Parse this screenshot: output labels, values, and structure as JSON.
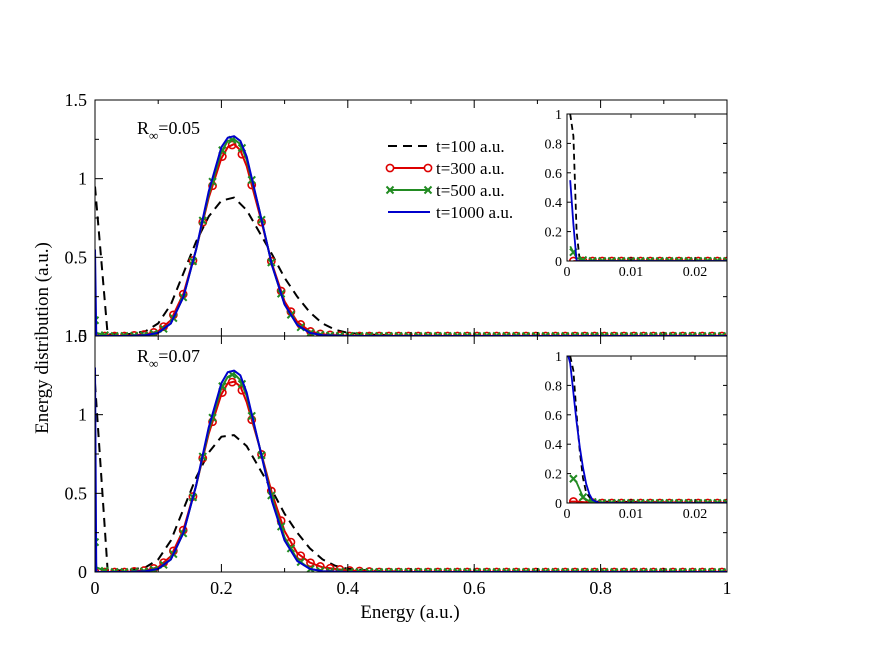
{
  "figure": {
    "xlabel": "Energy (a.u.)",
    "ylabel": "Energy distribution (a.u.)"
  },
  "legend": {
    "entries": [
      {
        "label": "t=100 a.u.",
        "color": "#000000",
        "dash": "dashed",
        "marker": "none"
      },
      {
        "label": "t=300 a.u.",
        "color": "#dd0000",
        "dash": "solid",
        "marker": "circle"
      },
      {
        "label": "t=500 a.u.",
        "color": "#228b22",
        "dash": "solid",
        "marker": "x"
      },
      {
        "label": "t=1000 a.u.",
        "color": "#0000cc",
        "dash": "solid",
        "marker": "none"
      }
    ]
  },
  "chart_data": [
    {
      "type": "line",
      "panel": "top-main",
      "annotation": "R∞=0.05",
      "xlim": [
        0,
        1
      ],
      "ylim": [
        0,
        1.5
      ],
      "xticks": [
        "0",
        "0.2",
        "0.4",
        "0.6",
        "0.8",
        "1"
      ],
      "yticks": [
        "0",
        "0.5",
        "1",
        "1.5"
      ],
      "series": [
        {
          "name": "t=100 a.u.",
          "x": [
            0.0,
            0.02,
            0.05,
            0.08,
            0.1,
            0.12,
            0.14,
            0.16,
            0.18,
            0.2,
            0.22,
            0.24,
            0.26,
            0.28,
            0.3,
            0.32,
            0.34,
            0.36,
            0.38,
            0.4,
            0.43,
            0.46,
            0.5,
            0.6,
            0.8,
            1.0
          ],
          "y": [
            0.95,
            0.01,
            0.01,
            0.03,
            0.08,
            0.2,
            0.4,
            0.6,
            0.76,
            0.86,
            0.88,
            0.8,
            0.66,
            0.52,
            0.37,
            0.25,
            0.15,
            0.08,
            0.04,
            0.02,
            0.01,
            0.005,
            0.0,
            0.0,
            0.0,
            0.0
          ]
        },
        {
          "name": "t=300 a.u.",
          "x": [
            0.0,
            0.02,
            0.05,
            0.08,
            0.1,
            0.12,
            0.14,
            0.16,
            0.18,
            0.2,
            0.21,
            0.22,
            0.23,
            0.24,
            0.26,
            0.28,
            0.3,
            0.32,
            0.34,
            0.36,
            0.38,
            0.4,
            0.45,
            0.5,
            0.6,
            0.8,
            1.0
          ],
          "y": [
            0.0,
            0.0,
            0.0,
            0.01,
            0.03,
            0.1,
            0.27,
            0.55,
            0.88,
            1.13,
            1.2,
            1.22,
            1.18,
            1.08,
            0.78,
            0.46,
            0.22,
            0.09,
            0.03,
            0.01,
            0.005,
            0.0,
            0.0,
            0.0,
            0.0,
            0.0,
            0.0
          ]
        },
        {
          "name": "t=500 a.u.",
          "x": [
            0.0,
            0.002,
            0.02,
            0.05,
            0.08,
            0.1,
            0.12,
            0.14,
            0.16,
            0.18,
            0.2,
            0.21,
            0.22,
            0.23,
            0.24,
            0.26,
            0.28,
            0.3,
            0.32,
            0.34,
            0.36,
            0.4,
            0.5,
            0.6,
            0.8,
            1.0
          ],
          "y": [
            0.1,
            0.02,
            0.0,
            0.0,
            0.005,
            0.02,
            0.08,
            0.25,
            0.55,
            0.9,
            1.17,
            1.24,
            1.25,
            1.22,
            1.12,
            0.8,
            0.45,
            0.2,
            0.07,
            0.02,
            0.005,
            0.0,
            0.0,
            0.0,
            0.0,
            0.0
          ]
        },
        {
          "name": "t=1000 a.u.",
          "x": [
            0.0,
            0.002,
            0.02,
            0.05,
            0.08,
            0.1,
            0.12,
            0.14,
            0.16,
            0.18,
            0.2,
            0.21,
            0.22,
            0.23,
            0.24,
            0.26,
            0.28,
            0.3,
            0.32,
            0.34,
            0.36,
            0.4,
            0.5,
            0.6,
            0.8,
            1.0
          ],
          "y": [
            0.55,
            0.0,
            0.0,
            0.0,
            0.005,
            0.02,
            0.08,
            0.25,
            0.55,
            0.92,
            1.2,
            1.26,
            1.27,
            1.24,
            1.14,
            0.8,
            0.45,
            0.2,
            0.07,
            0.02,
            0.005,
            0.0,
            0.0,
            0.0,
            0.0,
            0.0
          ]
        }
      ]
    },
    {
      "type": "line",
      "panel": "top-inset",
      "xlim": [
        0,
        0.025
      ],
      "ylim": [
        0,
        1
      ],
      "xticks": [
        "0",
        "0.01",
        "0.02"
      ],
      "yticks": [
        "0",
        "0.2",
        "0.4",
        "0.6",
        "0.8",
        "1"
      ],
      "series": [
        {
          "name": "t=100 a.u.",
          "x": [
            0.0005,
            0.001,
            0.0015,
            0.002,
            0.025
          ],
          "y": [
            1.0,
            0.85,
            0.2,
            0.0,
            0.0
          ]
        },
        {
          "name": "t=300 a.u.",
          "x": [
            0.001,
            0.003,
            0.005,
            0.007,
            0.009,
            0.011,
            0.013,
            0.015,
            0.017,
            0.019,
            0.021,
            0.023,
            0.025
          ],
          "y": [
            0.0,
            0.0,
            0.0,
            0.0,
            0.0,
            0.0,
            0.0,
            0.0,
            0.0,
            0.0,
            0.0,
            0.0,
            0.0
          ]
        },
        {
          "name": "t=500 a.u.",
          "x": [
            0.0005,
            0.0015,
            0.003,
            0.005,
            0.007,
            0.009,
            0.011,
            0.013,
            0.015,
            0.017,
            0.019,
            0.021,
            0.023,
            0.025
          ],
          "y": [
            0.1,
            0.02,
            0.0,
            0.0,
            0.0,
            0.0,
            0.0,
            0.0,
            0.0,
            0.0,
            0.0,
            0.0,
            0.0,
            0.0
          ]
        },
        {
          "name": "t=1000 a.u.",
          "x": [
            0.0005,
            0.001,
            0.0015,
            0.025
          ],
          "y": [
            0.55,
            0.25,
            0.0,
            0.0
          ]
        }
      ]
    },
    {
      "type": "line",
      "panel": "bottom-main",
      "annotation": "R∞=0.07",
      "xlim": [
        0,
        1
      ],
      "ylim": [
        0,
        1.5
      ],
      "xticks": [
        "0",
        "0.2",
        "0.4",
        "0.6",
        "0.8",
        "1"
      ],
      "yticks": [
        "0",
        "0.5",
        "1",
        "1.5"
      ],
      "series": [
        {
          "name": "t=100 a.u.",
          "x": [
            0.0,
            0.02,
            0.05,
            0.08,
            0.1,
            0.12,
            0.14,
            0.16,
            0.18,
            0.2,
            0.22,
            0.24,
            0.26,
            0.28,
            0.3,
            0.32,
            0.34,
            0.36,
            0.38,
            0.4,
            0.43,
            0.46,
            0.5,
            0.6,
            0.8,
            1.0
          ],
          "y": [
            1.2,
            0.01,
            0.01,
            0.03,
            0.08,
            0.2,
            0.4,
            0.6,
            0.76,
            0.86,
            0.87,
            0.8,
            0.66,
            0.52,
            0.37,
            0.25,
            0.15,
            0.08,
            0.04,
            0.02,
            0.01,
            0.005,
            0.0,
            0.0,
            0.0,
            0.0
          ]
        },
        {
          "name": "t=300 a.u.",
          "x": [
            0.0,
            0.02,
            0.05,
            0.08,
            0.1,
            0.12,
            0.14,
            0.16,
            0.18,
            0.2,
            0.21,
            0.22,
            0.23,
            0.24,
            0.26,
            0.28,
            0.3,
            0.32,
            0.34,
            0.36,
            0.38,
            0.4,
            0.45,
            0.5,
            0.6,
            0.8,
            1.0
          ],
          "y": [
            0.0,
            0.0,
            0.0,
            0.01,
            0.03,
            0.1,
            0.27,
            0.55,
            0.88,
            1.13,
            1.2,
            1.21,
            1.18,
            1.08,
            0.8,
            0.5,
            0.26,
            0.12,
            0.06,
            0.03,
            0.02,
            0.01,
            0.0,
            0.0,
            0.0,
            0.0,
            0.0
          ]
        },
        {
          "name": "t=500 a.u.",
          "x": [
            0.0,
            0.002,
            0.02,
            0.05,
            0.08,
            0.1,
            0.12,
            0.14,
            0.16,
            0.18,
            0.2,
            0.21,
            0.22,
            0.23,
            0.24,
            0.26,
            0.28,
            0.3,
            0.32,
            0.34,
            0.36,
            0.4,
            0.5,
            0.6,
            0.8,
            1.0
          ],
          "y": [
            0.19,
            0.03,
            0.0,
            0.0,
            0.005,
            0.02,
            0.08,
            0.25,
            0.55,
            0.9,
            1.17,
            1.24,
            1.26,
            1.22,
            1.12,
            0.8,
            0.47,
            0.22,
            0.08,
            0.02,
            0.005,
            0.0,
            0.0,
            0.0,
            0.0,
            0.0
          ]
        },
        {
          "name": "t=1000 a.u.",
          "x": [
            0.0,
            0.002,
            0.02,
            0.05,
            0.08,
            0.1,
            0.12,
            0.14,
            0.16,
            0.18,
            0.2,
            0.21,
            0.22,
            0.23,
            0.24,
            0.26,
            0.28,
            0.3,
            0.32,
            0.34,
            0.36,
            0.4,
            0.5,
            0.6,
            0.8,
            1.0
          ],
          "y": [
            1.3,
            0.0,
            0.0,
            0.0,
            0.005,
            0.02,
            0.08,
            0.25,
            0.55,
            0.92,
            1.2,
            1.27,
            1.28,
            1.25,
            1.14,
            0.8,
            0.45,
            0.2,
            0.07,
            0.02,
            0.005,
            0.0,
            0.0,
            0.0,
            0.0,
            0.0
          ]
        }
      ]
    },
    {
      "type": "line",
      "panel": "bottom-inset",
      "xlim": [
        0,
        0.025
      ],
      "ylim": [
        0,
        1
      ],
      "xticks": [
        "0",
        "0.01",
        "0.02"
      ],
      "yticks": [
        "0",
        "0.2",
        "0.4",
        "0.6",
        "0.8",
        "1"
      ],
      "series": [
        {
          "name": "t=100 a.u.",
          "x": [
            0.0005,
            0.001,
            0.0015,
            0.002,
            0.0025,
            0.003,
            0.004,
            0.025
          ],
          "y": [
            1.0,
            0.9,
            0.6,
            0.35,
            0.17,
            0.07,
            0.01,
            0.0
          ]
        },
        {
          "name": "t=300 a.u.",
          "x": [
            0.0005,
            0.0015,
            0.003,
            0.005,
            0.007,
            0.009,
            0.011,
            0.013,
            0.015,
            0.017,
            0.019,
            0.021,
            0.023,
            0.025
          ],
          "y": [
            0.01,
            0.01,
            0.005,
            0.0,
            0.0,
            0.0,
            0.0,
            0.0,
            0.0,
            0.0,
            0.0,
            0.0,
            0.0,
            0.0
          ]
        },
        {
          "name": "t=500 a.u.",
          "x": [
            0.0005,
            0.0015,
            0.0025,
            0.0035,
            0.005,
            0.007,
            0.009,
            0.011,
            0.013,
            0.015,
            0.017,
            0.019,
            0.021,
            0.023,
            0.025
          ],
          "y": [
            0.19,
            0.14,
            0.04,
            0.01,
            0.0,
            0.0,
            0.0,
            0.0,
            0.0,
            0.0,
            0.0,
            0.0,
            0.0,
            0.0,
            0.0
          ]
        },
        {
          "name": "t=1000 a.u.",
          "x": [
            0.0002,
            0.0005,
            0.001,
            0.0015,
            0.002,
            0.0025,
            0.003,
            0.0035,
            0.004,
            0.005,
            0.025
          ],
          "y": [
            1.0,
            0.95,
            0.75,
            0.55,
            0.38,
            0.24,
            0.13,
            0.06,
            0.02,
            0.0,
            0.0
          ]
        }
      ]
    }
  ]
}
